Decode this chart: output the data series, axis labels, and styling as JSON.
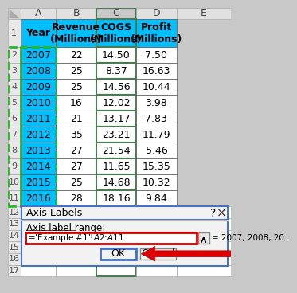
{
  "col_headers": [
    "Year",
    "Revenue\n(Millions)",
    "COGS\n(Millions)",
    "Profit\n(Millions)"
  ],
  "col_letters": [
    "A",
    "B",
    "C",
    "D",
    "E"
  ],
  "data_rows": [
    [
      "2007",
      "22",
      "14.50",
      "7.50"
    ],
    [
      "2008",
      "25",
      "8.37",
      "16.63"
    ],
    [
      "2009",
      "25",
      "14.56",
      "10.44"
    ],
    [
      "2010",
      "16",
      "12.02",
      "3.98"
    ],
    [
      "2011",
      "21",
      "13.17",
      "7.83"
    ],
    [
      "2012",
      "35",
      "23.21",
      "11.79"
    ],
    [
      "2013",
      "27",
      "21.54",
      "5.46"
    ],
    [
      "2014",
      "27",
      "11.65",
      "15.35"
    ],
    [
      "2015",
      "25",
      "14.68",
      "10.32"
    ],
    [
      "2016",
      "28",
      "18.16",
      "9.84"
    ]
  ],
  "cyan": "#00BFFF",
  "white": "#FFFFFF",
  "light_gray": "#F0F0F0",
  "col_header_bg": "#D8D8D8",
  "row_num_bg": "#E8E8E8",
  "dialog_title": "Axis Labels",
  "dialog_label": "Axis label range:",
  "dialog_input": "='Example #1'!$A$2:$A$11",
  "dialog_preview": "= 2007, 2008, 20..",
  "ok_text": "OK",
  "cancel_text": "Cancel"
}
